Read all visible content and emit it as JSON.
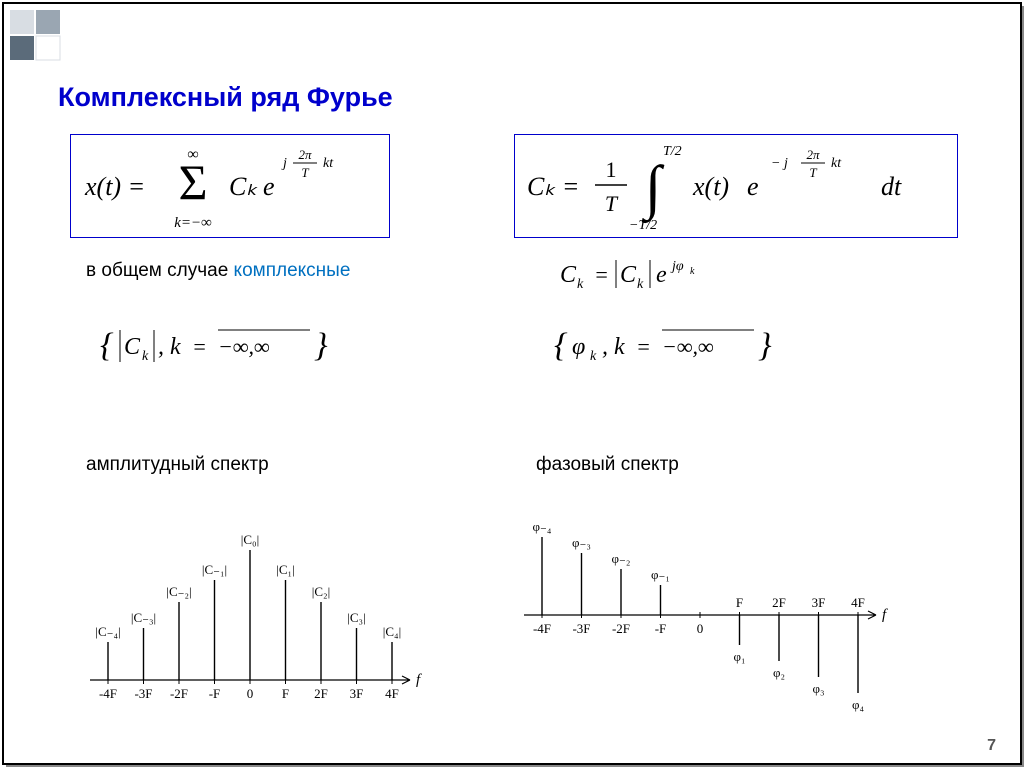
{
  "title": "Комплексный ряд Фурье",
  "text_left1a": "в общем случае ",
  "text_left1b": "комплексные",
  "text_right_ck": "Cₖ = |Cₖ| e^{jφₖ}",
  "set_left": "{ |Cₖ|, k = −∞,∞ }",
  "set_right": "{ φₖ, k = −∞,∞ }",
  "label_left": "амплитудный спектр",
  "label_right": "фазовый спектр",
  "page": "7",
  "colors": {
    "title": "#0000cc",
    "accent": "#0070c0",
    "text": "#000000",
    "axis": "#000000",
    "deco1": "#9aa6b2",
    "deco2": "#5b6b7a",
    "deco3": "#d8dde3"
  },
  "amp_chart": {
    "type": "stem",
    "x_labels": [
      "-4F",
      "-3F",
      "-2F",
      "-F",
      "0",
      "F",
      "2F",
      "3F",
      "4F"
    ],
    "axis_var": "f",
    "bar_labels": [
      "|C₋₄|",
      "|C₋₃|",
      "|C₋₂|",
      "|C₋₁|",
      "|C₀|",
      "|C₁|",
      "|C₂|",
      "|C₃|",
      "|C₄|"
    ],
    "heights": [
      38,
      52,
      78,
      100,
      130,
      100,
      78,
      52,
      38
    ],
    "stroke": "#000000",
    "fontsize": 13
  },
  "phase_chart": {
    "type": "stem-bipolar",
    "x_labels": [
      "-4F",
      "-3F",
      "-2F",
      "-F",
      "0",
      "F",
      "2F",
      "3F",
      "4F"
    ],
    "axis_var": "f",
    "bar_labels": [
      "φ₋₄",
      "φ₋₃",
      "φ₋₂",
      "φ₋₁",
      "",
      "φ₁",
      "φ₂",
      "φ₃",
      "φ₄"
    ],
    "values": [
      78,
      62,
      46,
      30,
      0,
      -30,
      -46,
      -62,
      -78
    ],
    "stroke": "#000000",
    "fontsize": 13
  },
  "eq1": {
    "lhs": "x(t) =",
    "sum_top": "∞",
    "sum_bot": "k=−∞",
    "C": "Cₖ",
    "e": "e",
    "exp_num": "2π",
    "exp_den": "T",
    "exp_j": "j",
    "exp_kt": "kt"
  },
  "eq2": {
    "lhs": "Cₖ =",
    "frac_num": "1",
    "frac_den": "T",
    "int_top": "T/2",
    "int_bot": "−T/2",
    "xt": "x(t)",
    "e": "e",
    "exp_j": "− j",
    "exp_num": "2π",
    "exp_den": "T",
    "exp_kt": "kt",
    "dt": "dt"
  }
}
